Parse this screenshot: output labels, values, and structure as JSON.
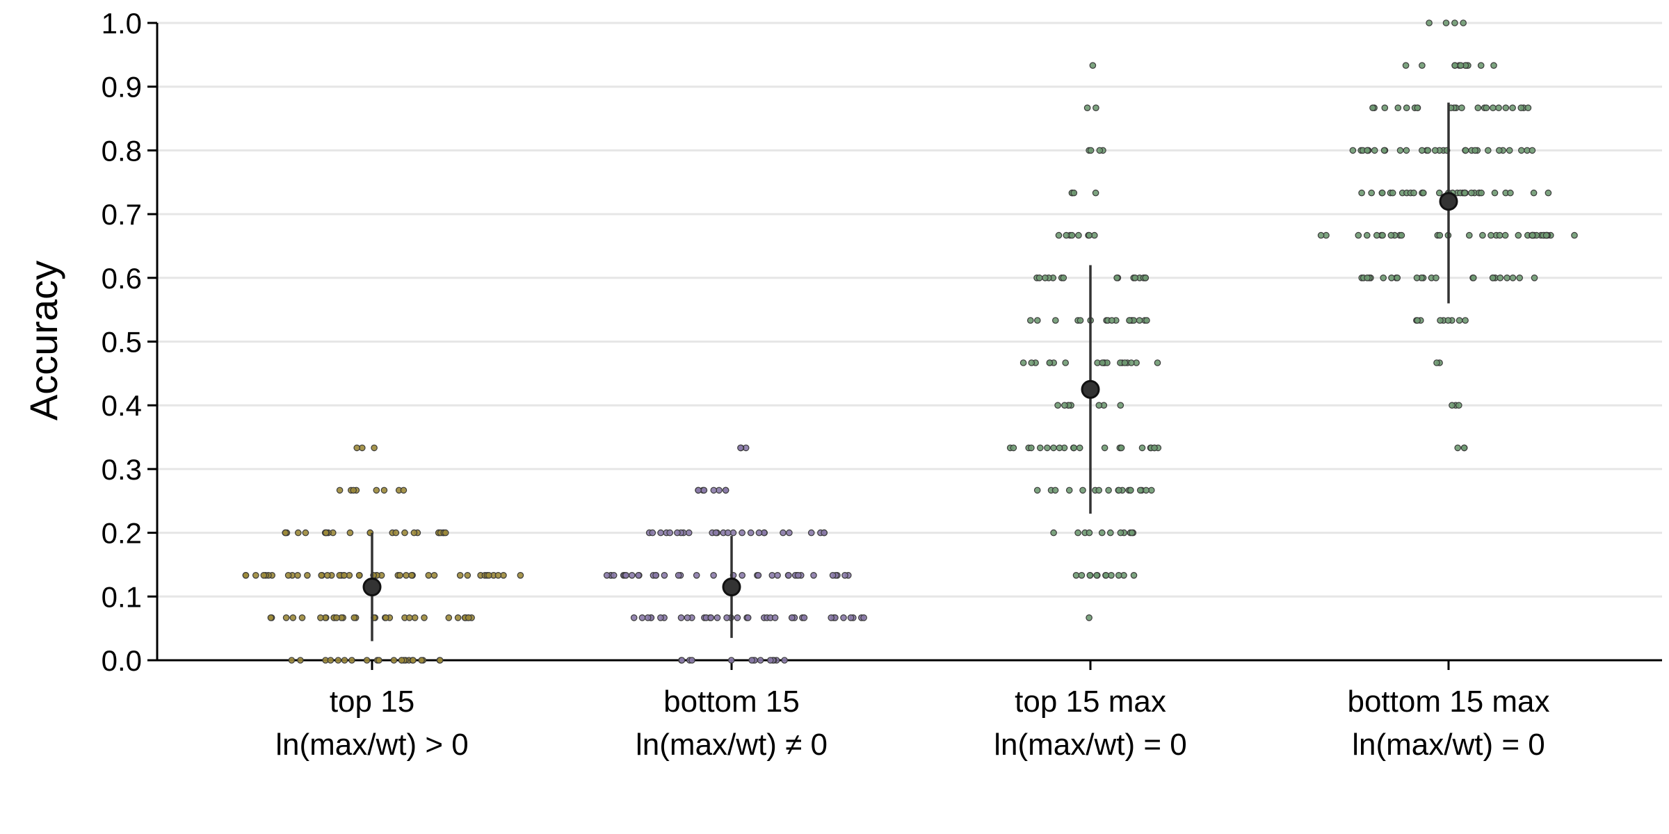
{
  "chart_data": {
    "type": "scatter",
    "title": "",
    "xlabel": "",
    "ylabel": "Accuracy",
    "ylim": [
      0,
      1
    ],
    "yticks": [
      "0.0",
      "0.1",
      "0.2",
      "0.3",
      "0.4",
      "0.5",
      "0.6",
      "0.7",
      "0.8",
      "0.9",
      "1.0"
    ],
    "grid": "horizontal",
    "legend": "none",
    "categories": [
      {
        "line1": "top 15",
        "line2": "ln(max/wt) > 0"
      },
      {
        "line1": "bottom 15",
        "line2": "ln(max/wt) ≠ 0"
      },
      {
        "line1": "top 15 max",
        "line2": "ln(max/wt) = 0"
      },
      {
        "line1": "bottom 15 max",
        "line2": "ln(max/wt) = 0"
      }
    ],
    "series": [
      {
        "color": "#9c8a3a",
        "mean": 0.115,
        "error": [
          0.03,
          0.2
        ],
        "levels": [
          {
            "y": 0.0,
            "count": 22
          },
          {
            "y": 0.0667,
            "count": 32
          },
          {
            "y": 0.1333,
            "count": 44
          },
          {
            "y": 0.2,
            "count": 24
          },
          {
            "y": 0.2667,
            "count": 8
          },
          {
            "y": 0.3333,
            "count": 3
          }
        ]
      },
      {
        "color": "#8a7aa8",
        "mean": 0.115,
        "error": [
          0.035,
          0.195
        ],
        "levels": [
          {
            "y": 0.0,
            "count": 14
          },
          {
            "y": 0.0667,
            "count": 38
          },
          {
            "y": 0.1333,
            "count": 36
          },
          {
            "y": 0.2,
            "count": 26
          },
          {
            "y": 0.2667,
            "count": 8
          },
          {
            "y": 0.3333,
            "count": 3
          }
        ]
      },
      {
        "color": "#6f9a72",
        "mean": 0.425,
        "error": [
          0.23,
          0.62
        ],
        "levels": [
          {
            "y": 0.0667,
            "count": 1
          },
          {
            "y": 0.1333,
            "count": 12
          },
          {
            "y": 0.2,
            "count": 11
          },
          {
            "y": 0.2667,
            "count": 18
          },
          {
            "y": 0.3333,
            "count": 22
          },
          {
            "y": 0.4,
            "count": 8
          },
          {
            "y": 0.4667,
            "count": 20
          },
          {
            "y": 0.5333,
            "count": 18
          },
          {
            "y": 0.6,
            "count": 16
          },
          {
            "y": 0.6667,
            "count": 8
          },
          {
            "y": 0.7333,
            "count": 4
          },
          {
            "y": 0.8,
            "count": 4
          },
          {
            "y": 0.8667,
            "count": 2
          },
          {
            "y": 0.9333,
            "count": 1
          }
        ]
      },
      {
        "color": "#6f9a72",
        "mean": 0.72,
        "error": [
          0.56,
          0.875
        ],
        "levels": [
          {
            "y": 0.3333,
            "count": 3
          },
          {
            "y": 0.4,
            "count": 3
          },
          {
            "y": 0.4667,
            "count": 2
          },
          {
            "y": 0.5333,
            "count": 9
          },
          {
            "y": 0.6,
            "count": 24
          },
          {
            "y": 0.6667,
            "count": 38
          },
          {
            "y": 0.7333,
            "count": 32
          },
          {
            "y": 0.8,
            "count": 30
          },
          {
            "y": 0.8667,
            "count": 22
          },
          {
            "y": 0.9333,
            "count": 12
          },
          {
            "y": 1.0,
            "count": 4
          }
        ]
      }
    ]
  }
}
